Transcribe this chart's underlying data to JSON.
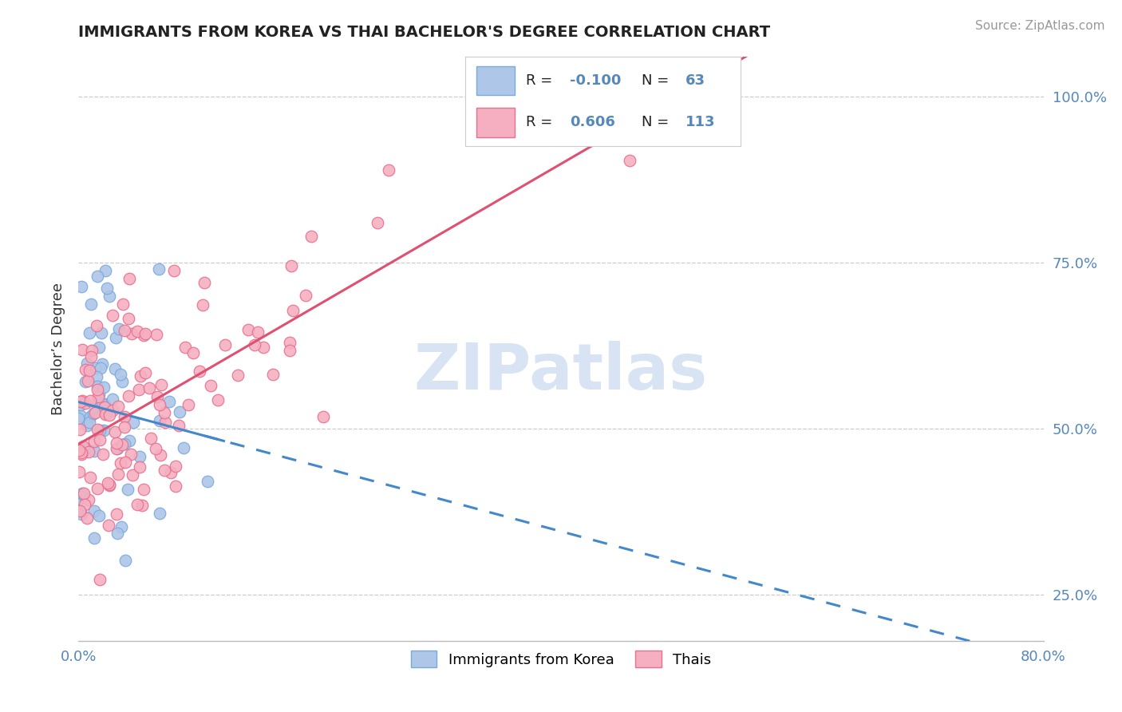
{
  "title": "IMMIGRANTS FROM KOREA VS THAI BACHELOR'S DEGREE CORRELATION CHART",
  "source_text": "Source: ZipAtlas.com",
  "ylabel": "Bachelor’s Degree",
  "xlim": [
    0.0,
    0.8
  ],
  "ylim": [
    0.18,
    1.06
  ],
  "xtick_vals": [
    0.0,
    0.2,
    0.4,
    0.6,
    0.8
  ],
  "xtick_labels": [
    "0.0%",
    "",
    "",
    "",
    "80.0%"
  ],
  "ytick_vals": [
    0.25,
    0.5,
    0.75,
    1.0
  ],
  "ytick_labels": [
    "25.0%",
    "50.0%",
    "75.0%",
    "100.0%"
  ],
  "korea_R": -0.1,
  "korea_N": 63,
  "thai_R": 0.606,
  "thai_N": 113,
  "korea_color": "#aec6e8",
  "thai_color": "#f5afc0",
  "korea_edge_color": "#7aaadd",
  "thai_edge_color": "#e87090",
  "korea_line_color": "#4488cc",
  "thai_line_color": "#e05070",
  "legend_label_korea": "Immigrants from Korea",
  "legend_label_thai": "Thais",
  "watermark": "ZIPatlas",
  "watermark_color": "#c8d8ee",
  "background_color": "#ffffff",
  "title_color": "#222222",
  "tick_color": "#5588bb",
  "source_color": "#999999"
}
